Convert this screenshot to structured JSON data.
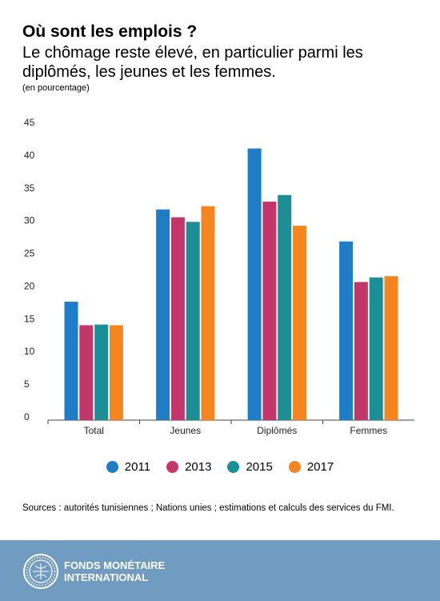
{
  "header": {
    "title": "Où sont les emplois ?",
    "subtitle": "Le chômage reste élevé, en particulier parmi les diplômés, les jeunes et les femmes.",
    "unit": "(en pourcentage)"
  },
  "chart_data": {
    "type": "bar",
    "categories": [
      "Total",
      "Jeunes",
      "Diplômés",
      "Femmes"
    ],
    "series": [
      {
        "name": "2011",
        "color": "#1f7cc6",
        "values": [
          18.1,
          32.2,
          41.5,
          27.3
        ]
      },
      {
        "name": "2013",
        "color": "#c2366a",
        "values": [
          14.5,
          31.0,
          33.4,
          21.1
        ]
      },
      {
        "name": "2015",
        "color": "#1b8e96",
        "values": [
          14.6,
          30.3,
          34.4,
          21.8
        ]
      },
      {
        "name": "2017",
        "color": "#f5861f",
        "values": [
          14.5,
          32.7,
          29.7,
          22.0
        ]
      }
    ],
    "yticks": [
      0,
      5,
      10,
      15,
      20,
      25,
      30,
      35,
      40,
      45
    ],
    "ylim": [
      0,
      45
    ],
    "legend": "bottom-center",
    "grid": false
  },
  "source": "Sources : autorités tunisiennes ; Nations unies ; estimations et calculs des services du FMI.",
  "footer": {
    "org_line1": "FONDS MONÉTAIRE",
    "org_line2": "INTERNATIONAL",
    "logo_icon": "imf-seal-icon"
  }
}
